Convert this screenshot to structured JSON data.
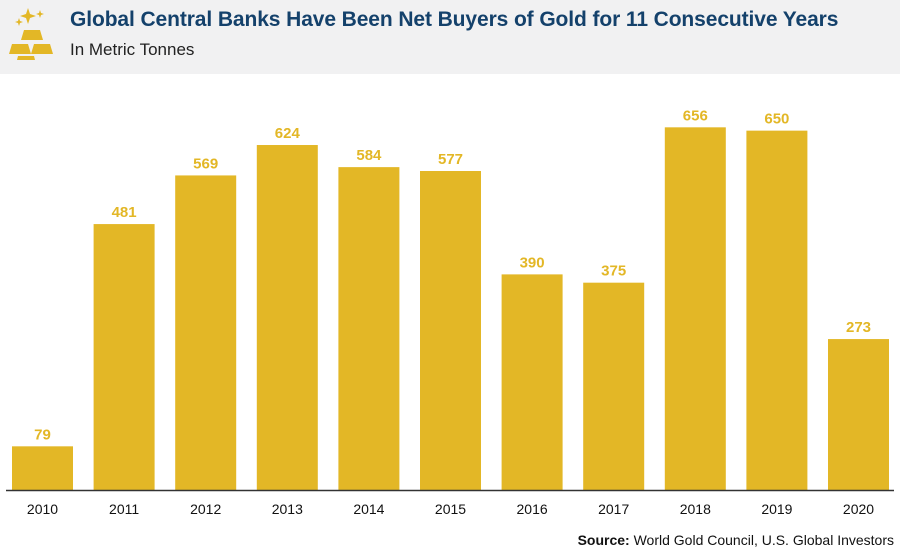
{
  "header": {
    "title": "Global Central Banks Have Been Net Buyers of Gold for 11 Consecutive Years",
    "subtitle": "In Metric Tonnes"
  },
  "source": {
    "label": "Source:",
    "text": "World Gold Council, U.S. Global Investors"
  },
  "colors": {
    "bar": "#e3b726",
    "label": "#e3b726",
    "axis": "#333333",
    "header_bg": "#f1f1f2",
    "title": "#14416b"
  },
  "icons": {
    "logo": "gold-bars-icon"
  },
  "chart_data": {
    "type": "bar",
    "categories": [
      "2010",
      "2011",
      "2012",
      "2013",
      "2014",
      "2015",
      "2016",
      "2017",
      "2018",
      "2019",
      "2020"
    ],
    "values": [
      79,
      481,
      569,
      624,
      584,
      577,
      390,
      375,
      656,
      650,
      273
    ],
    "ylim": [
      0,
      700
    ],
    "grid": false,
    "legend": "none"
  }
}
